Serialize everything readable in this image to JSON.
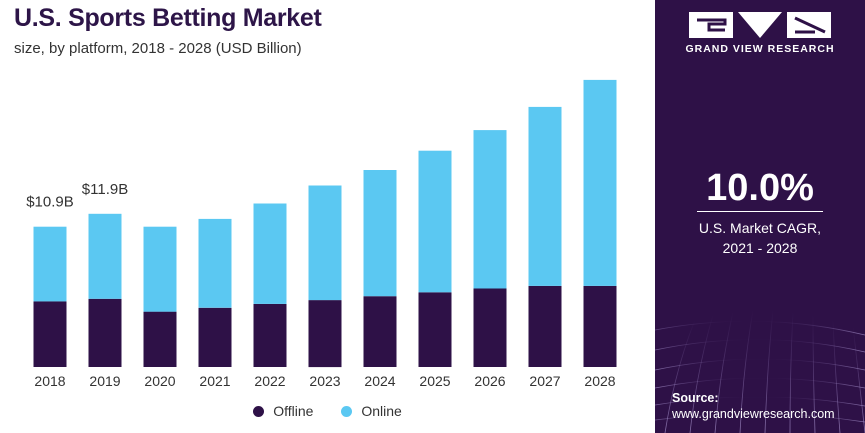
{
  "header": {
    "title": "U.S. Sports Betting Market",
    "subtitle": "size, by platform, 2018 - 2028 (USD Billion)"
  },
  "colors": {
    "offline": "#2e1147",
    "online": "#5bc8f2",
    "panel": "#2e1147",
    "title": "#2d1548"
  },
  "chart_data": {
    "type": "bar",
    "stacked": true,
    "categories": [
      "2018",
      "2019",
      "2020",
      "2021",
      "2022",
      "2023",
      "2024",
      "2025",
      "2026",
      "2027",
      "2028"
    ],
    "series": [
      {
        "name": "Offline",
        "values": [
          5.1,
          5.3,
          4.3,
          4.6,
          4.9,
          5.2,
          5.5,
          5.8,
          6.1,
          6.3,
          6.3
        ]
      },
      {
        "name": "Online",
        "values": [
          5.8,
          6.6,
          6.6,
          6.9,
          7.8,
          8.9,
          9.8,
          11.0,
          12.3,
          13.9,
          16.0
        ]
      }
    ],
    "data_labels": [
      {
        "category": "2018",
        "text": "$10.9B"
      },
      {
        "category": "2019",
        "text": "$11.9B"
      }
    ],
    "ylim": [
      0,
      24
    ],
    "grid": false,
    "legend_position": "bottom"
  },
  "legend": [
    {
      "label": "Offline",
      "color": "#2e1147"
    },
    {
      "label": "Online",
      "color": "#5bc8f2"
    }
  ],
  "panel": {
    "logo_icon": "grand-view-research-logo",
    "brand": "GRAND VIEW RESEARCH",
    "cagr_value": "10.0%",
    "cagr_label_line1": "U.S. Market CAGR,",
    "cagr_label_line2": "2021 - 2028",
    "source_title": "Source:",
    "source_url": "www.grandviewresearch.com"
  }
}
